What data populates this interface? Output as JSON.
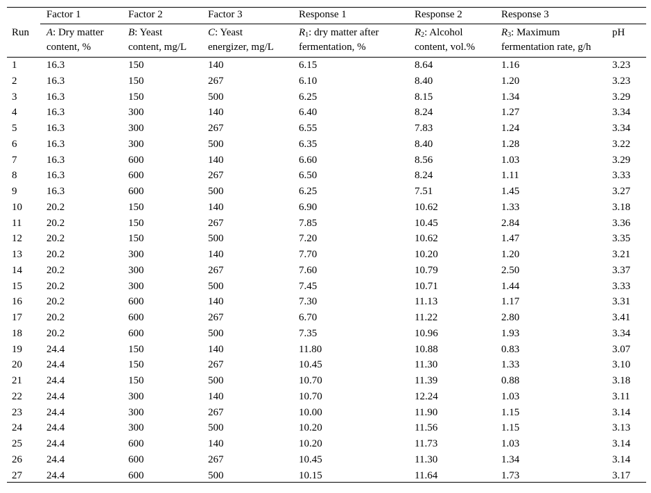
{
  "header": {
    "group": [
      "",
      "Factor 1",
      "Factor 2",
      "Factor 3",
      "Response 1",
      "Response 2",
      "Response 3",
      ""
    ],
    "run": "Run",
    "a": {
      "sym": "A",
      "line1": ": Dry matter",
      "line2": "content, %"
    },
    "b": {
      "sym": "B",
      "line1": ": Yeast",
      "line2": "content, mg/L"
    },
    "c": {
      "sym": "C",
      "line1": ": Yeast",
      "line2": "energizer, mg/L"
    },
    "r1": {
      "sym": "R",
      "sub": "1",
      "line1": ": dry matter after",
      "line2": "fermentation, %"
    },
    "r2": {
      "sym": "R",
      "sub": "2",
      "line1": ": Alcohol",
      "line2": "content, vol.%"
    },
    "r3": {
      "sym": "R",
      "sub": "3",
      "line1": ": Maximum",
      "line2": "fermentation rate, g/h"
    },
    "ph": "pH"
  },
  "rows": [
    [
      "1",
      "16.3",
      "150",
      "140",
      "6.15",
      "8.64",
      "1.16",
      "3.23"
    ],
    [
      "2",
      "16.3",
      "150",
      "267",
      "6.10",
      "8.40",
      "1.20",
      "3.23"
    ],
    [
      "3",
      "16.3",
      "150",
      "500",
      "6.25",
      "8.15",
      "1.34",
      "3.29"
    ],
    [
      "4",
      "16.3",
      "300",
      "140",
      "6.40",
      "8.24",
      "1.27",
      "3.34"
    ],
    [
      "5",
      "16.3",
      "300",
      "267",
      "6.55",
      "7.83",
      "1.24",
      "3.34"
    ],
    [
      "6",
      "16.3",
      "300",
      "500",
      "6.35",
      "8.40",
      "1.28",
      "3.22"
    ],
    [
      "7",
      "16.3",
      "600",
      "140",
      "6.60",
      "8.56",
      "1.03",
      "3.29"
    ],
    [
      "8",
      "16.3",
      "600",
      "267",
      "6.50",
      "8.24",
      "1.11",
      "3.33"
    ],
    [
      "9",
      "16.3",
      "600",
      "500",
      "6.25",
      "7.51",
      "1.45",
      "3.27"
    ],
    [
      "10",
      "20.2",
      "150",
      "140",
      "6.90",
      "10.62",
      "1.33",
      "3.18"
    ],
    [
      "11",
      "20.2",
      "150",
      "267",
      "7.85",
      "10.45",
      "2.84",
      "3.36"
    ],
    [
      "12",
      "20.2",
      "150",
      "500",
      "7.20",
      "10.62",
      "1.47",
      "3.35"
    ],
    [
      "13",
      "20.2",
      "300",
      "140",
      "7.70",
      "10.20",
      "1.20",
      "3.21"
    ],
    [
      "14",
      "20.2",
      "300",
      "267",
      "7.60",
      "10.79",
      "2.50",
      "3.37"
    ],
    [
      "15",
      "20.2",
      "300",
      "500",
      "7.45",
      "10.71",
      "1.44",
      "3.33"
    ],
    [
      "16",
      "20.2",
      "600",
      "140",
      "7.30",
      "11.13",
      "1.17",
      "3.31"
    ],
    [
      "17",
      "20.2",
      "600",
      "267",
      "6.70",
      "11.22",
      "2.80",
      "3.41"
    ],
    [
      "18",
      "20.2",
      "600",
      "500",
      "7.35",
      "10.96",
      "1.93",
      "3.34"
    ],
    [
      "19",
      "24.4",
      "150",
      "140",
      "11.80",
      "10.88",
      "0.83",
      "3.07"
    ],
    [
      "20",
      "24.4",
      "150",
      "267",
      "10.45",
      "11.30",
      "1.33",
      "3.10"
    ],
    [
      "21",
      "24.4",
      "150",
      "500",
      "10.70",
      "11.39",
      "0.88",
      "3.18"
    ],
    [
      "22",
      "24.4",
      "300",
      "140",
      "10.70",
      "12.24",
      "1.03",
      "3.11"
    ],
    [
      "23",
      "24.4",
      "300",
      "267",
      "10.00",
      "11.90",
      "1.15",
      "3.14"
    ],
    [
      "24",
      "24.4",
      "300",
      "500",
      "10.20",
      "11.56",
      "1.15",
      "3.13"
    ],
    [
      "25",
      "24.4",
      "600",
      "140",
      "10.20",
      "11.73",
      "1.03",
      "3.14"
    ],
    [
      "26",
      "24.4",
      "600",
      "267",
      "10.45",
      "11.30",
      "1.34",
      "3.14"
    ],
    [
      "27",
      "24.4",
      "600",
      "500",
      "10.15",
      "11.64",
      "1.73",
      "3.17"
    ]
  ]
}
